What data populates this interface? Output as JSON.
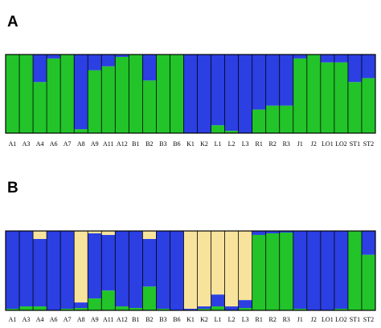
{
  "chart_data": [
    {
      "type": "stacked-bar",
      "panel": "A",
      "categories": [
        "A1",
        "A3",
        "A4",
        "A6",
        "A7",
        "A8",
        "A9",
        "A11",
        "A12",
        "B1",
        "B2",
        "B3",
        "B6",
        "K1",
        "K2",
        "L1",
        "L2",
        "L3",
        "R1",
        "R2",
        "R3",
        "J1",
        "J2",
        "LO1",
        "LO2",
        "ST1",
        "ST2"
      ],
      "ylim": [
        0,
        1
      ],
      "series": [
        {
          "color": "#22c42a",
          "values": [
            1,
            1,
            0.65,
            0.95,
            1,
            0.05,
            0.8,
            0.85,
            0.97,
            1,
            0.67,
            1,
            1,
            0,
            0,
            0.1,
            0.03,
            0,
            0.3,
            0.35,
            0.35,
            0.95,
            1,
            0.9,
            0.9,
            0.65,
            0.7
          ]
        },
        {
          "color": "#2b3fe3",
          "values": [
            0,
            0,
            0.35,
            0.05,
            0,
            0.95,
            0.2,
            0.15,
            0.03,
            0,
            0.33,
            0,
            0,
            1,
            1,
            0.9,
            0.97,
            1,
            0.7,
            0.65,
            0.65,
            0.05,
            0,
            0.1,
            0.1,
            0.35,
            0.3
          ]
        }
      ]
    },
    {
      "type": "stacked-bar",
      "panel": "B",
      "categories": [
        "A1",
        "A3",
        "A4",
        "A6",
        "A7",
        "A8",
        "A9",
        "A11",
        "A12",
        "B1",
        "B2",
        "B3",
        "B6",
        "K1",
        "K2",
        "L1",
        "L2",
        "L3",
        "R1",
        "R2",
        "R3",
        "J1",
        "J2",
        "LO1",
        "LO2",
        "ST1",
        "ST2"
      ],
      "ylim": [
        0,
        1
      ],
      "series": [
        {
          "color": "#22c42a",
          "values": [
            0.02,
            0.05,
            0.05,
            0,
            0.02,
            0.03,
            0.15,
            0.25,
            0.05,
            0.03,
            0.3,
            0.02,
            0,
            0,
            0.02,
            0.05,
            0,
            0.03,
            0.95,
            0.97,
            0.98,
            0.02,
            0,
            0,
            0.02,
            1,
            0.7
          ]
        },
        {
          "color": "#2b3fe3",
          "values": [
            0.98,
            0.95,
            0.85,
            1,
            0.98,
            0.07,
            0.82,
            0.7,
            0.95,
            0.97,
            0.6,
            0.98,
            1,
            0.02,
            0.03,
            0.15,
            0.05,
            0.1,
            0.05,
            0.03,
            0.02,
            0.98,
            1,
            1,
            0.98,
            0,
            0.3
          ]
        },
        {
          "color": "#f8e39c",
          "values": [
            0,
            0,
            0.1,
            0,
            0,
            0.9,
            0.03,
            0.05,
            0,
            0,
            0.1,
            0,
            0,
            0.98,
            0.95,
            0.8,
            0.95,
            0.87,
            0,
            0,
            0,
            0,
            0,
            0,
            0,
            0,
            0
          ]
        }
      ]
    }
  ]
}
